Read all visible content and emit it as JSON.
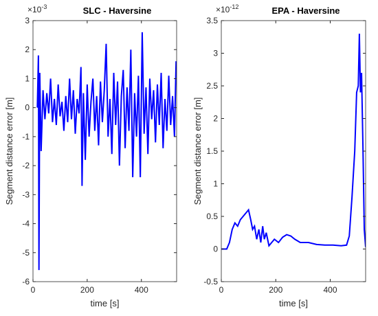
{
  "chart_data": [
    {
      "type": "line",
      "title": "SLC - Haversine",
      "exponent_base": "×10",
      "exponent": "-3",
      "xlabel": "time [s]",
      "ylabel": "Segment distance error [m]",
      "color": "#0000ff",
      "x": [
        16,
        20,
        22,
        25,
        30,
        37,
        44,
        51,
        58,
        65,
        72,
        79,
        86,
        93,
        100,
        107,
        114,
        121,
        128,
        135,
        142,
        149,
        156,
        163,
        170,
        177,
        181,
        186,
        193,
        200,
        207,
        214,
        221,
        228,
        235,
        242,
        249,
        256,
        263,
        270,
        277,
        284,
        291,
        298,
        305,
        312,
        319,
        326,
        333,
        340,
        347,
        354,
        361,
        368,
        375,
        382,
        389,
        396,
        403,
        410,
        417,
        424,
        431,
        438,
        445,
        452,
        459,
        466,
        473,
        480,
        487,
        494,
        501,
        508,
        515,
        522,
        528
      ],
      "values": [
        0,
        1.8,
        -5.6,
        1.2,
        -1.5,
        0.6,
        -0.4,
        0.5,
        -0.2,
        1.0,
        -0.5,
        0.3,
        -0.6,
        0.8,
        -0.3,
        0.2,
        -0.8,
        0.4,
        -0.5,
        1.0,
        -0.4,
        0.6,
        -0.9,
        0.3,
        -0.2,
        1.4,
        -2.7,
        0.5,
        -1.8,
        0.8,
        -1.0,
        0.2,
        1.0,
        -0.8,
        0.4,
        -1.3,
        0.9,
        -0.5,
        0.6,
        2.2,
        -1.0,
        0.3,
        -1.6,
        1.2,
        -0.6,
        0.9,
        -2.0,
        0.4,
        1.3,
        -1.4,
        0.7,
        -0.8,
        2.0,
        -2.4,
        0.5,
        -1.0,
        1.1,
        -2.4,
        2.6,
        -0.9,
        0.7,
        -1.6,
        1.0,
        -0.4,
        0.6,
        -1.2,
        0.8,
        -0.6,
        1.2,
        -1.4,
        0.3,
        -0.8,
        1.1,
        -0.6,
        0.4,
        -1.0,
        1.6
      ],
      "xlim": [
        0,
        530
      ],
      "xticks": [
        0,
        200,
        400
      ],
      "ylim": [
        -6,
        3
      ],
      "yticks": [
        -6,
        -5,
        -4,
        -3,
        -2,
        -1,
        0,
        1,
        2,
        3
      ],
      "grid": false
    },
    {
      "type": "line",
      "title": "EPA - Haversine",
      "exponent_base": "×10",
      "exponent": "-12",
      "xlabel": "time [s]",
      "ylabel": "Segment distance error [m]",
      "color": "#0000ff",
      "x": [
        0,
        20,
        30,
        40,
        50,
        60,
        70,
        80,
        90,
        100,
        108,
        115,
        122,
        130,
        138,
        145,
        152,
        158,
        165,
        175,
        185,
        195,
        210,
        225,
        240,
        255,
        270,
        290,
        320,
        350,
        380,
        410,
        440,
        460,
        470,
        480,
        490,
        497,
        503,
        507,
        511,
        515,
        520,
        525,
        530
      ],
      "values": [
        0,
        0,
        0.1,
        0.3,
        0.4,
        0.35,
        0.45,
        0.5,
        0.55,
        0.6,
        0.45,
        0.3,
        0.35,
        0.15,
        0.3,
        0.1,
        0.35,
        0.15,
        0.25,
        0.05,
        0.1,
        0.15,
        0.1,
        0.18,
        0.22,
        0.2,
        0.15,
        0.1,
        0.1,
        0.07,
        0.06,
        0.06,
        0.05,
        0.06,
        0.2,
        0.8,
        1.5,
        2.4,
        2.5,
        3.3,
        2.4,
        2.7,
        1.6,
        0.3,
        0.03
      ],
      "xlim": [
        0,
        530
      ],
      "xticks": [
        0,
        200,
        400
      ],
      "ylim": [
        -0.5,
        3.5
      ],
      "yticks": [
        -0.5,
        0,
        0.5,
        1,
        1.5,
        2,
        2.5,
        3,
        3.5
      ],
      "grid": false
    }
  ]
}
